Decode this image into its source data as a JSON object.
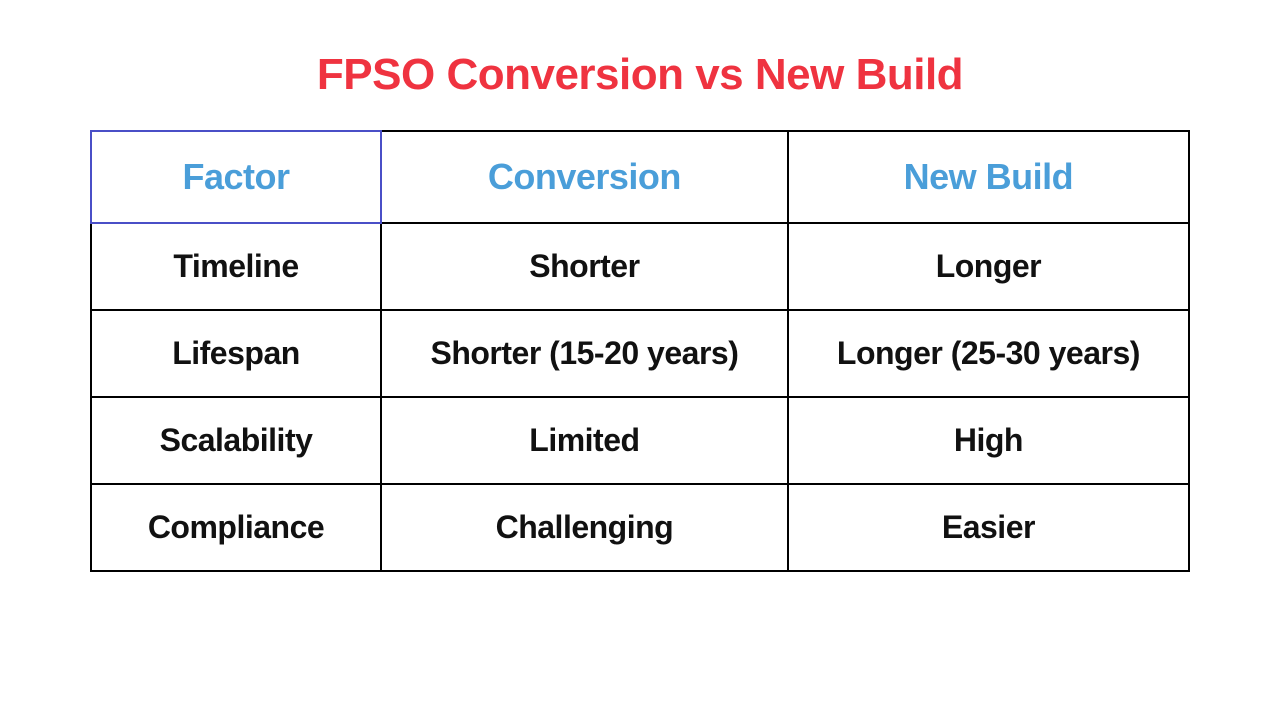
{
  "title": "FPSO Conversion vs New Build",
  "title_color": "#ef3340",
  "header_color": "#4a9ed9",
  "border_color": "#000000",
  "first_header_border_color": "#4a4fc7",
  "background_color": "#ffffff",
  "text_color": "#111111",
  "title_fontsize": 44,
  "header_fontsize": 36,
  "cell_fontsize": 32,
  "table": {
    "columns": [
      "Factor",
      "Conversion",
      "New Build"
    ],
    "rows": [
      [
        "Timeline",
        "Shorter",
        "Longer"
      ],
      [
        "Lifespan",
        "Shorter (15-20 years)",
        "Longer (25-30 years)"
      ],
      [
        "Scalability",
        "Limited",
        "High"
      ],
      [
        "Compliance",
        "Challenging",
        "Easier"
      ]
    ]
  }
}
